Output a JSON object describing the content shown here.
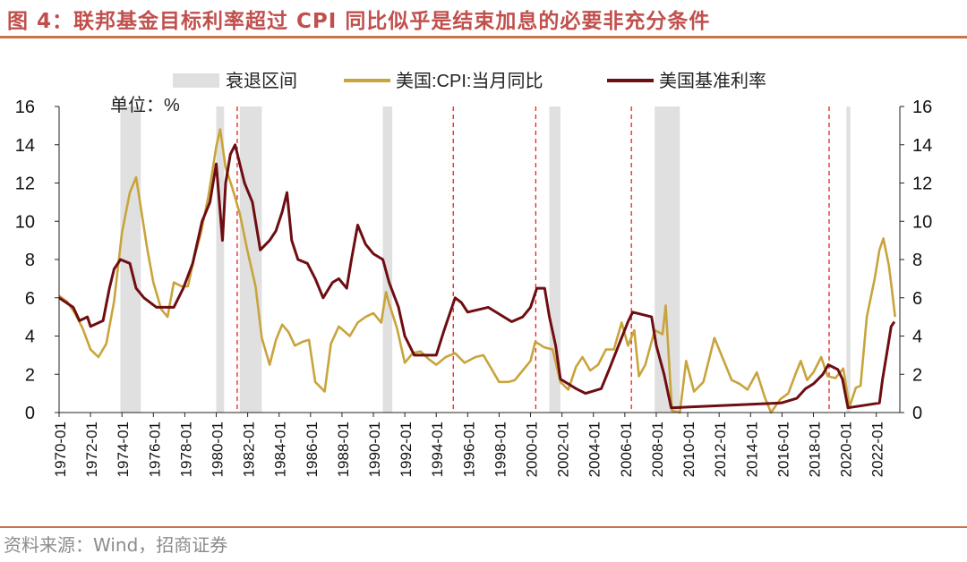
{
  "header": {
    "title": "图 4：联邦基金目标利率超过 CPI 同比似乎是结束加息的必要非充分条件"
  },
  "footer": {
    "source": "资料来源：Wind，招商证券"
  },
  "colors": {
    "title": "#c0504d",
    "rule": "#c9734b",
    "recession": "#e0e0e0",
    "cpi": "#c8a43c",
    "rate": "#6e0d12",
    "marker": "#e8221b",
    "axis": "#222222"
  },
  "chart_data": {
    "type": "line",
    "unit_label": "单位：%",
    "x_ticks": [
      "1970-01",
      "1972-01",
      "1974-01",
      "1976-01",
      "1978-01",
      "1980-01",
      "1982-01",
      "1984-01",
      "1986-01",
      "1988-01",
      "1990-01",
      "1992-01",
      "1994-01",
      "1996-01",
      "1998-01",
      "2000-01",
      "2002-01",
      "2004-01",
      "2006-01",
      "2008-01",
      "2010-01",
      "2012-01",
      "2014-01",
      "2016-01",
      "2018-01",
      "2020-01",
      "2022-01"
    ],
    "x_range": [
      1970.0,
      2023.5
    ],
    "ylim": [
      0,
      16
    ],
    "y_ticks": [
      0,
      2,
      4,
      6,
      8,
      10,
      12,
      14,
      16
    ],
    "legend": {
      "position": "top",
      "recession_label": "衰退区间",
      "cpi_label": "美国:CPI:当月同比",
      "rate_label": "美国基准利率"
    },
    "recessions": [
      [
        1973.9,
        1975.2
      ],
      [
        1980.0,
        1980.5
      ],
      [
        1981.5,
        1982.9
      ],
      [
        1990.6,
        1991.2
      ],
      [
        2001.2,
        2001.9
      ],
      [
        2007.9,
        2009.5
      ],
      [
        2020.1,
        2020.35
      ]
    ],
    "marker_lines": [
      "1981-05",
      "1995-02",
      "2000-05",
      "2006-06",
      "2019-01"
    ],
    "series": [
      {
        "name": "美国:CPI:当月同比",
        "points": [
          [
            1970.0,
            6.1
          ],
          [
            1970.5,
            5.8
          ],
          [
            1971.0,
            5.2
          ],
          [
            1971.5,
            4.4
          ],
          [
            1972.0,
            3.3
          ],
          [
            1972.5,
            2.9
          ],
          [
            1973.0,
            3.6
          ],
          [
            1973.5,
            5.8
          ],
          [
            1974.0,
            9.4
          ],
          [
            1974.5,
            11.5
          ],
          [
            1974.9,
            12.3
          ],
          [
            1975.3,
            10.2
          ],
          [
            1975.6,
            8.6
          ],
          [
            1976.0,
            6.8
          ],
          [
            1976.5,
            5.4
          ],
          [
            1976.9,
            5.0
          ],
          [
            1977.3,
            6.8
          ],
          [
            1977.8,
            6.6
          ],
          [
            1978.2,
            6.6
          ],
          [
            1978.6,
            8.1
          ],
          [
            1979.0,
            9.3
          ],
          [
            1979.5,
            11.3
          ],
          [
            1980.0,
            13.9
          ],
          [
            1980.25,
            14.8
          ],
          [
            1980.6,
            12.8
          ],
          [
            1981.0,
            11.8
          ],
          [
            1981.5,
            10.4
          ],
          [
            1982.0,
            8.4
          ],
          [
            1982.5,
            6.6
          ],
          [
            1982.9,
            3.9
          ],
          [
            1983.4,
            2.5
          ],
          [
            1983.8,
            3.8
          ],
          [
            1984.2,
            4.6
          ],
          [
            1984.6,
            4.2
          ],
          [
            1985.0,
            3.5
          ],
          [
            1985.5,
            3.7
          ],
          [
            1985.9,
            3.8
          ],
          [
            1986.3,
            1.6
          ],
          [
            1986.9,
            1.1
          ],
          [
            1987.3,
            3.6
          ],
          [
            1987.8,
            4.5
          ],
          [
            1988.5,
            4.0
          ],
          [
            1989.0,
            4.7
          ],
          [
            1989.5,
            5.0
          ],
          [
            1990.0,
            5.2
          ],
          [
            1990.5,
            4.7
          ],
          [
            1990.8,
            6.3
          ],
          [
            1991.0,
            5.7
          ],
          [
            1991.5,
            4.4
          ],
          [
            1992.0,
            2.6
          ],
          [
            1992.5,
            3.1
          ],
          [
            1993.0,
            3.2
          ],
          [
            1993.5,
            2.8
          ],
          [
            1994.0,
            2.5
          ],
          [
            1994.6,
            2.9
          ],
          [
            1995.2,
            3.1
          ],
          [
            1995.8,
            2.6
          ],
          [
            1996.5,
            2.9
          ],
          [
            1997.0,
            3.0
          ],
          [
            1997.5,
            2.3
          ],
          [
            1998.0,
            1.6
          ],
          [
            1998.6,
            1.6
          ],
          [
            1999.0,
            1.7
          ],
          [
            1999.5,
            2.2
          ],
          [
            2000.0,
            2.7
          ],
          [
            2000.3,
            3.7
          ],
          [
            2000.9,
            3.4
          ],
          [
            2001.4,
            3.3
          ],
          [
            2001.9,
            1.6
          ],
          [
            2002.4,
            1.2
          ],
          [
            2002.9,
            2.4
          ],
          [
            2003.3,
            2.9
          ],
          [
            2003.8,
            2.2
          ],
          [
            2004.3,
            2.5
          ],
          [
            2004.8,
            3.3
          ],
          [
            2005.3,
            3.3
          ],
          [
            2005.8,
            4.7
          ],
          [
            2006.2,
            3.5
          ],
          [
            2006.6,
            4.3
          ],
          [
            2006.9,
            1.9
          ],
          [
            2007.3,
            2.5
          ],
          [
            2007.9,
            4.3
          ],
          [
            2008.4,
            4.1
          ],
          [
            2008.6,
            5.6
          ],
          [
            2009.0,
            0.1
          ],
          [
            2009.5,
            -1.2
          ],
          [
            2009.9,
            2.7
          ],
          [
            2010.4,
            1.1
          ],
          [
            2011.0,
            1.6
          ],
          [
            2011.7,
            3.9
          ],
          [
            2012.3,
            2.7
          ],
          [
            2012.8,
            1.7
          ],
          [
            2013.3,
            1.5
          ],
          [
            2013.8,
            1.2
          ],
          [
            2014.4,
            2.1
          ],
          [
            2014.9,
            0.8
          ],
          [
            2015.3,
            -0.1
          ],
          [
            2015.9,
            0.7
          ],
          [
            2016.4,
            1.0
          ],
          [
            2016.9,
            2.1
          ],
          [
            2017.2,
            2.7
          ],
          [
            2017.6,
            1.7
          ],
          [
            2018.0,
            2.1
          ],
          [
            2018.5,
            2.9
          ],
          [
            2018.9,
            1.9
          ],
          [
            2019.4,
            1.8
          ],
          [
            2019.9,
            2.3
          ],
          [
            2020.3,
            0.3
          ],
          [
            2020.7,
            1.3
          ],
          [
            2021.0,
            1.4
          ],
          [
            2021.4,
            5.0
          ],
          [
            2021.9,
            7.0
          ],
          [
            2022.2,
            8.5
          ],
          [
            2022.45,
            9.1
          ],
          [
            2022.8,
            7.7
          ],
          [
            2023.0,
            6.4
          ],
          [
            2023.2,
            5.0
          ]
        ]
      },
      {
        "name": "美国基准利率",
        "points": [
          [
            1970.0,
            6.0
          ],
          [
            1970.9,
            5.5
          ],
          [
            1971.3,
            4.8
          ],
          [
            1971.8,
            5.0
          ],
          [
            1972.0,
            4.5
          ],
          [
            1972.8,
            4.8
          ],
          [
            1973.2,
            6.5
          ],
          [
            1973.5,
            7.5
          ],
          [
            1973.9,
            8.0
          ],
          [
            1974.5,
            7.8
          ],
          [
            1974.9,
            6.5
          ],
          [
            1975.4,
            6.0
          ],
          [
            1976.2,
            5.5
          ],
          [
            1977.3,
            5.5
          ],
          [
            1977.9,
            6.5
          ],
          [
            1978.5,
            7.8
          ],
          [
            1979.1,
            10.0
          ],
          [
            1979.6,
            11.0
          ],
          [
            1980.0,
            13.0
          ],
          [
            1980.4,
            9.0
          ],
          [
            1980.6,
            12.0
          ],
          [
            1980.9,
            13.5
          ],
          [
            1981.2,
            14.0
          ],
          [
            1981.5,
            13.0
          ],
          [
            1981.8,
            12.0
          ],
          [
            1982.3,
            11.0
          ],
          [
            1982.8,
            8.5
          ],
          [
            1983.4,
            9.0
          ],
          [
            1983.8,
            9.5
          ],
          [
            1984.2,
            10.5
          ],
          [
            1984.5,
            11.5
          ],
          [
            1984.8,
            9.0
          ],
          [
            1985.2,
            8.0
          ],
          [
            1985.8,
            7.8
          ],
          [
            1986.3,
            7.0
          ],
          [
            1986.8,
            6.0
          ],
          [
            1987.4,
            6.8
          ],
          [
            1987.8,
            7.0
          ],
          [
            1988.3,
            6.5
          ],
          [
            1988.6,
            8.0
          ],
          [
            1989.0,
            9.8
          ],
          [
            1989.5,
            8.8
          ],
          [
            1990.0,
            8.3
          ],
          [
            1990.6,
            8.0
          ],
          [
            1991.0,
            6.8
          ],
          [
            1991.6,
            5.5
          ],
          [
            1992.0,
            4.0
          ],
          [
            1992.6,
            3.0
          ],
          [
            1993.5,
            3.0
          ],
          [
            1994.0,
            3.0
          ],
          [
            1994.5,
            4.3
          ],
          [
            1995.2,
            6.0
          ],
          [
            1995.6,
            5.75
          ],
          [
            1996.0,
            5.25
          ],
          [
            1997.3,
            5.5
          ],
          [
            1998.8,
            4.75
          ],
          [
            1999.5,
            5.0
          ],
          [
            2000.0,
            5.5
          ],
          [
            2000.4,
            6.5
          ],
          [
            2000.9,
            6.5
          ],
          [
            2001.2,
            5.0
          ],
          [
            2001.6,
            3.5
          ],
          [
            2001.9,
            1.75
          ],
          [
            2002.9,
            1.25
          ],
          [
            2003.5,
            1.0
          ],
          [
            2004.5,
            1.25
          ],
          [
            2005.0,
            2.25
          ],
          [
            2005.6,
            3.5
          ],
          [
            2006.2,
            4.75
          ],
          [
            2006.5,
            5.25
          ],
          [
            2007.7,
            5.0
          ],
          [
            2008.0,
            3.5
          ],
          [
            2008.5,
            2.0
          ],
          [
            2008.95,
            0.25
          ],
          [
            2015.95,
            0.5
          ],
          [
            2016.95,
            0.75
          ],
          [
            2017.5,
            1.25
          ],
          [
            2018.0,
            1.5
          ],
          [
            2018.6,
            2.0
          ],
          [
            2018.95,
            2.5
          ],
          [
            2019.55,
            2.25
          ],
          [
            2019.85,
            1.75
          ],
          [
            2020.2,
            0.25
          ],
          [
            2022.2,
            0.5
          ],
          [
            2022.4,
            1.75
          ],
          [
            2022.7,
            3.25
          ],
          [
            2022.95,
            4.5
          ],
          [
            2023.15,
            4.75
          ]
        ]
      }
    ]
  }
}
